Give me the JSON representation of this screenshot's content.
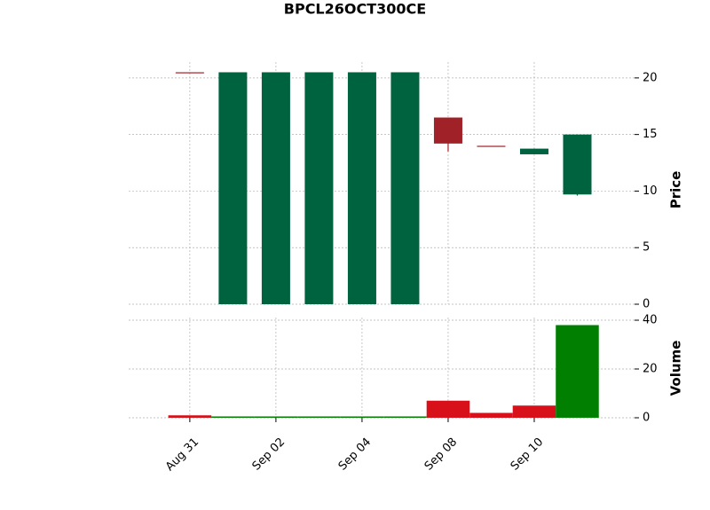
{
  "chart_data": {
    "type": "candlestick",
    "title": "BPCL26OCT300CE",
    "categories": [
      "Aug 31",
      null,
      "Sep 02",
      null,
      "Sep 04",
      null,
      "Sep 08",
      null,
      "Sep 10",
      null
    ],
    "open": [
      20.5,
      0,
      0,
      0,
      0,
      0,
      16.5,
      14,
      13.25,
      9.7
    ],
    "high": [
      20.5,
      20.5,
      20.5,
      20.5,
      20.5,
      20.5,
      16.5,
      14,
      13.75,
      15
    ],
    "low": [
      20.5,
      0,
      0,
      0,
      0,
      0,
      13.5,
      14,
      13.25,
      9.6
    ],
    "close": [
      20.5,
      20.5,
      20.5,
      20.5,
      20.5,
      20.5,
      14.2,
      14,
      13.75,
      15
    ],
    "volume": [
      1,
      0,
      0,
      0,
      0,
      0,
      7,
      2,
      5,
      38
    ],
    "up_color": "#006340",
    "down_color": "#a02128",
    "volume_colors": [
      "#d8101a",
      "#007f00",
      "#007f00",
      "#007f00",
      "#007f00",
      "#007f00",
      "#d8101a",
      "#d8101a",
      "#d8101a",
      "#007f00"
    ],
    "ylabel": "Price",
    "y2label": "Volume",
    "xlim": [
      -1.42,
      10.33
    ],
    "ylim": [
      0,
      21.4
    ],
    "yticks": [
      0,
      5,
      10,
      15,
      20
    ],
    "y2lim": [
      0,
      41.1
    ],
    "y2ticks": [
      0,
      20,
      40
    ],
    "grid": true
  }
}
